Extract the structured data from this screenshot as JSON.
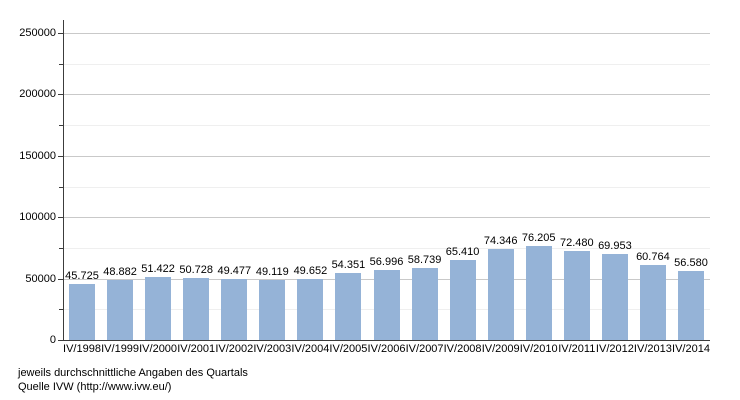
{
  "chart_data": {
    "type": "bar",
    "title": "",
    "xlabel": "",
    "ylabel": "",
    "categories": [
      "IV/1998",
      "IV/1999",
      "IV/2000",
      "IV/2001",
      "IV/2002",
      "IV/2003",
      "IV/2004",
      "IV/2005",
      "IV/2006",
      "IV/2007",
      "IV/2008",
      "IV/2009",
      "IV/2010",
      "IV/2011",
      "IV/2012",
      "IV/2013",
      "IV/2014"
    ],
    "values": [
      45725,
      48882,
      51422,
      50728,
      49477,
      49119,
      49652,
      54351,
      56996,
      58739,
      65410,
      74346,
      76205,
      72480,
      69953,
      60764,
      56580
    ],
    "value_labels": [
      "45.725",
      "48.882",
      "51.422",
      "50.728",
      "49.477",
      "49.119",
      "49.652",
      "54.351",
      "56.996",
      "58.739",
      "65.410",
      "74.346",
      "76.205",
      "72.480",
      "69.953",
      "60.764",
      "56.580"
    ],
    "ylim": [
      0,
      250000
    ],
    "yticks": [
      0,
      50000,
      100000,
      150000,
      200000,
      250000
    ],
    "ytick_labels": [
      "0",
      "50000",
      "100000",
      "150000",
      "200000",
      "250000"
    ],
    "minor_tick_step": 25000,
    "grid": "horizontal major lines at 50000 steps, faint minor lines at 25000 steps",
    "legend": "none"
  },
  "footer": {
    "line1": "jeweils durchschnittliche Angaben des Quartals",
    "line2": "Quelle IVW (http://www.ivw.eu/)"
  },
  "colors": {
    "bar": "#95b3d7",
    "grid_major": "#c9c9c9",
    "grid_minor": "#efefef",
    "axis": "#3c3c3c",
    "text": "#000000",
    "background": "#ffffff"
  }
}
